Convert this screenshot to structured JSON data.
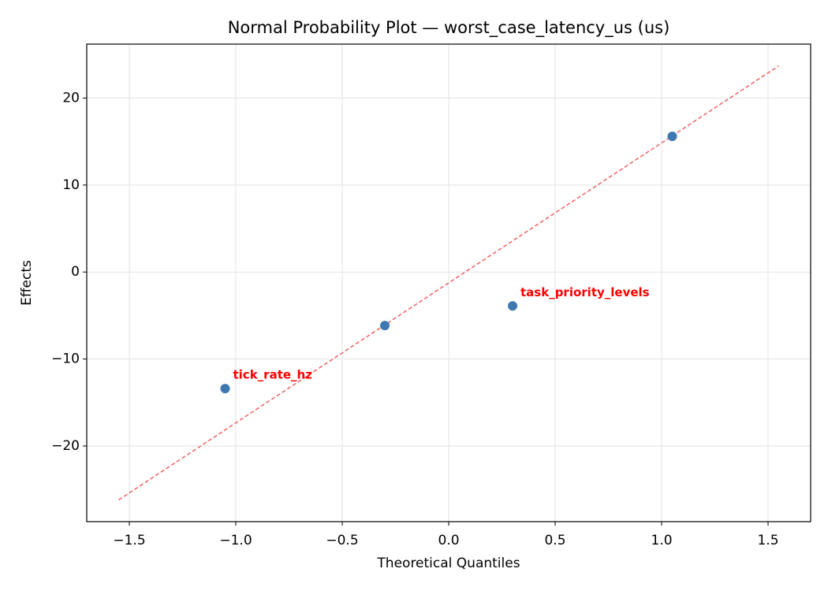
{
  "chart_data": {
    "type": "scatter",
    "title": "Normal Probability Plot — worst_case_latency_us (us)",
    "x_label": "Theoretical Quantiles",
    "y_label": "Effects",
    "xlim": [
      -1.7,
      1.7
    ],
    "ylim": [
      -28.7,
      26.2
    ],
    "xticks": [
      {
        "value": -1.5,
        "label": "−1.5"
      },
      {
        "value": -1.0,
        "label": "−1.0"
      },
      {
        "value": -0.5,
        "label": "−0.5"
      },
      {
        "value": 0,
        "label": "0.0"
      },
      {
        "value": 0.5,
        "label": "0.5"
      },
      {
        "value": 1.0,
        "label": "1.0"
      },
      {
        "value": 1.5,
        "label": "1.5"
      }
    ],
    "yticks": [
      {
        "value": -20,
        "label": "−20"
      },
      {
        "value": -10,
        "label": "−10"
      },
      0,
      10,
      20
    ],
    "grid": true,
    "series": [
      {
        "type": "line",
        "color": "#f06060",
        "dashed": true,
        "x": [
          -1.55,
          1.55
        ],
        "values": [
          -26.2,
          23.7
        ]
      },
      {
        "type": "scatter",
        "color": "#3f77b0",
        "label_color": "#ff0000",
        "x": [
          -1.05,
          -0.3,
          0.3,
          1.05
        ],
        "values": [
          -13.4,
          -6.15,
          -3.9,
          15.6
        ],
        "labels": [
          "tick_rate_hz",
          null,
          "task_priority_levels",
          null
        ]
      }
    ]
  }
}
